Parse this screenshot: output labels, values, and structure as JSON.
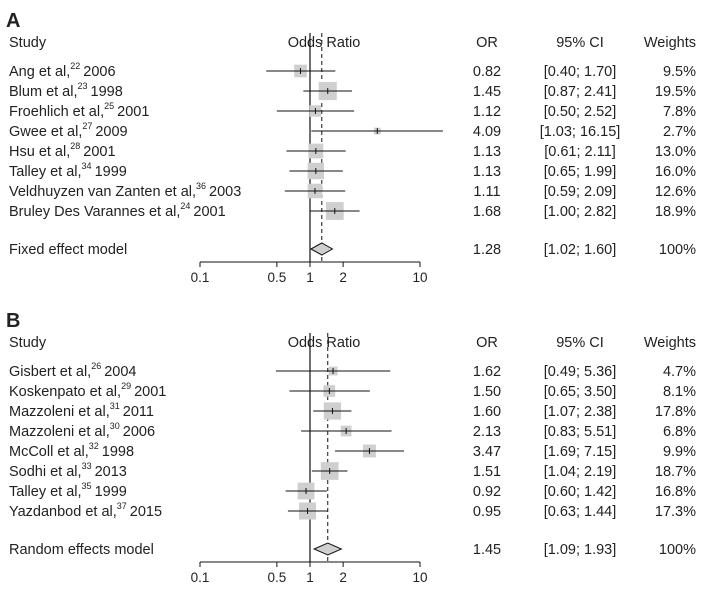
{
  "panels": [
    {
      "letter": "A",
      "headers": {
        "study": "Study",
        "plot": "Odds Ratio",
        "or": "OR",
        "ci": "95% CI",
        "weights": "Weights"
      },
      "studies": [
        {
          "author": "Ang et al,",
          "ref": "22",
          "year": "2006",
          "or": 0.82,
          "lo": 0.4,
          "hi": 1.7,
          "or_text": "0.82",
          "ci_text": "[0.40; 1.70]",
          "weight_text": "9.5%",
          "weight": 9.5
        },
        {
          "author": "Blum et al,",
          "ref": "23",
          "year": "1998",
          "or": 1.45,
          "lo": 0.87,
          "hi": 2.41,
          "or_text": "1.45",
          "ci_text": "[0.87; 2.41]",
          "weight_text": "19.5%",
          "weight": 19.5
        },
        {
          "author": "Froehlich et al,",
          "ref": "25",
          "year": "2001",
          "or": 1.12,
          "lo": 0.5,
          "hi": 2.52,
          "or_text": "1.12",
          "ci_text": "[0.50; 2.52]",
          "weight_text": "7.8%",
          "weight": 7.8
        },
        {
          "author": "Gwee et al,",
          "ref": "27",
          "year": "2009",
          "or": 4.09,
          "lo": 1.03,
          "hi": 16.15,
          "or_text": "4.09",
          "ci_text": "[1.03; 16.15]",
          "weight_text": "2.7%",
          "weight": 2.7
        },
        {
          "author": "Hsu et al,",
          "ref": "28",
          "year": "2001",
          "or": 1.13,
          "lo": 0.61,
          "hi": 2.11,
          "or_text": "1.13",
          "ci_text": "[0.61; 2.11]",
          "weight_text": "13.0%",
          "weight": 13.0
        },
        {
          "author": "Talley et al,",
          "ref": "34",
          "year": "1999",
          "or": 1.13,
          "lo": 0.65,
          "hi": 1.99,
          "or_text": "1.13",
          "ci_text": "[0.65; 1.99]",
          "weight_text": "16.0%",
          "weight": 16.0
        },
        {
          "author": "Veldhuyzen van Zanten et al,",
          "ref": "36",
          "year": "2003",
          "or": 1.11,
          "lo": 0.59,
          "hi": 2.09,
          "or_text": "1.11",
          "ci_text": "[0.59; 2.09]",
          "weight_text": "12.6%",
          "weight": 12.6
        },
        {
          "author": "Bruley Des Varannes et al,",
          "ref": "24",
          "year": "2001",
          "or": 1.68,
          "lo": 1.0,
          "hi": 2.82,
          "or_text": "1.68",
          "ci_text": "[1.00; 2.82]",
          "weight_text": "18.9%",
          "weight": 18.9
        }
      ],
      "summary": {
        "label": "Fixed effect model",
        "or": 1.28,
        "lo": 1.02,
        "hi": 1.6,
        "or_text": "1.28",
        "ci_text": "[1.02; 1.60]",
        "weight_text": "100%"
      },
      "ticks": [
        {
          "value": 0.1,
          "label": "0.1"
        },
        {
          "value": 0.5,
          "label": "0.5"
        },
        {
          "value": 1,
          "label": "1"
        },
        {
          "value": 2,
          "label": "2"
        },
        {
          "value": 10,
          "label": "10"
        }
      ]
    },
    {
      "letter": "B",
      "headers": {
        "study": "Study",
        "plot": "Odds Ratio",
        "or": "OR",
        "ci": "95% CI",
        "weights": "Weights"
      },
      "studies": [
        {
          "author": "Gisbert et al,",
          "ref": "26",
          "year": "2004",
          "or": 1.62,
          "lo": 0.49,
          "hi": 5.36,
          "or_text": "1.62",
          "ci_text": "[0.49; 5.36]",
          "weight_text": "4.7%",
          "weight": 4.7
        },
        {
          "author": "Koskenpato et al,",
          "ref": "29",
          "year": "2001",
          "or": 1.5,
          "lo": 0.65,
          "hi": 3.5,
          "or_text": "1.50",
          "ci_text": "[0.65; 3.50]",
          "weight_text": "8.1%",
          "weight": 8.1
        },
        {
          "author": "Mazzoleni et al,",
          "ref": "31",
          "year": "2011",
          "or": 1.6,
          "lo": 1.07,
          "hi": 2.38,
          "or_text": "1.60",
          "ci_text": "[1.07; 2.38]",
          "weight_text": "17.8%",
          "weight": 17.8
        },
        {
          "author": "Mazzoleni et al,",
          "ref": "30",
          "year": "2006",
          "or": 2.13,
          "lo": 0.83,
          "hi": 5.51,
          "or_text": "2.13",
          "ci_text": "[0.83; 5.51]",
          "weight_text": "6.8%",
          "weight": 6.8
        },
        {
          "author": "McColl et al,",
          "ref": "32",
          "year": "1998",
          "or": 3.47,
          "lo": 1.69,
          "hi": 7.15,
          "or_text": "3.47",
          "ci_text": "[1.69; 7.15]",
          "weight_text": "9.9%",
          "weight": 9.9
        },
        {
          "author": "Sodhi et al,",
          "ref": "33",
          "year": "2013",
          "or": 1.51,
          "lo": 1.04,
          "hi": 2.19,
          "or_text": "1.51",
          "ci_text": "[1.04; 2.19]",
          "weight_text": "18.7%",
          "weight": 18.7
        },
        {
          "author": "Talley et al,",
          "ref": "35",
          "year": "1999",
          "or": 0.92,
          "lo": 0.6,
          "hi": 1.42,
          "or_text": "0.92",
          "ci_text": "[0.60; 1.42]",
          "weight_text": "16.8%",
          "weight": 16.8
        },
        {
          "author": "Yazdanbod et al,",
          "ref": "37",
          "year": "2015",
          "or": 0.95,
          "lo": 0.63,
          "hi": 1.44,
          "or_text": "0.95",
          "ci_text": "[0.63; 1.44]",
          "weight_text": "17.3%",
          "weight": 17.3
        }
      ],
      "summary": {
        "label": "Random effects model",
        "or": 1.45,
        "lo": 1.09,
        "hi": 1.93,
        "or_text": "1.45",
        "ci_text": "[1.09; 1.93]",
        "weight_text": "100%"
      },
      "ticks": [
        {
          "value": 0.1,
          "label": "0.1"
        },
        {
          "value": 0.5,
          "label": "0.5"
        },
        {
          "value": 1,
          "label": "1"
        },
        {
          "value": 2,
          "label": "2"
        },
        {
          "value": 10,
          "label": "10"
        }
      ]
    }
  ],
  "chart_data": [
    {
      "type": "forest",
      "panel": "A",
      "scale": "log",
      "xlim": [
        0.1,
        10
      ],
      "reference_line": 1,
      "summary_line": 1.28,
      "xlabel": "Odds Ratio",
      "categories": [
        "Ang et al 2006",
        "Blum et al 1998",
        "Froehlich et al 2001",
        "Gwee et al 2009",
        "Hsu et al 2001",
        "Talley et al 1999",
        "Veldhuyzen van Zanten et al 2003",
        "Bruley Des Varannes et al 2001",
        "Fixed effect model"
      ],
      "values": [
        0.82,
        1.45,
        1.12,
        4.09,
        1.13,
        1.13,
        1.11,
        1.68,
        1.28
      ],
      "ci_low": [
        0.4,
        0.87,
        0.5,
        1.03,
        0.61,
        0.65,
        0.59,
        1.0,
        1.02
      ],
      "ci_high": [
        1.7,
        2.41,
        2.52,
        16.15,
        2.11,
        1.99,
        2.09,
        2.82,
        1.6
      ],
      "weights": [
        9.5,
        19.5,
        7.8,
        2.7,
        13.0,
        16.0,
        12.6,
        18.9,
        100
      ]
    },
    {
      "type": "forest",
      "panel": "B",
      "scale": "log",
      "xlim": [
        0.1,
        10
      ],
      "reference_line": 1,
      "summary_line": 1.45,
      "xlabel": "Odds Ratio",
      "categories": [
        "Gisbert et al 2004",
        "Koskenpato et al 2001",
        "Mazzoleni et al 2011",
        "Mazzoleni et al 2006",
        "McColl et al 1998",
        "Sodhi et al 2013",
        "Talley et al 1999",
        "Yazdanbod et al 2015",
        "Random effects model"
      ],
      "values": [
        1.62,
        1.5,
        1.6,
        2.13,
        3.47,
        1.51,
        0.92,
        0.95,
        1.45
      ],
      "ci_low": [
        0.49,
        0.65,
        1.07,
        0.83,
        1.69,
        1.04,
        0.6,
        0.63,
        1.09
      ],
      "ci_high": [
        5.36,
        3.5,
        2.38,
        5.51,
        7.15,
        2.19,
        1.42,
        1.44,
        1.93
      ],
      "weights": [
        4.7,
        8.1,
        17.8,
        6.8,
        9.9,
        18.7,
        16.8,
        17.3,
        100
      ]
    }
  ]
}
